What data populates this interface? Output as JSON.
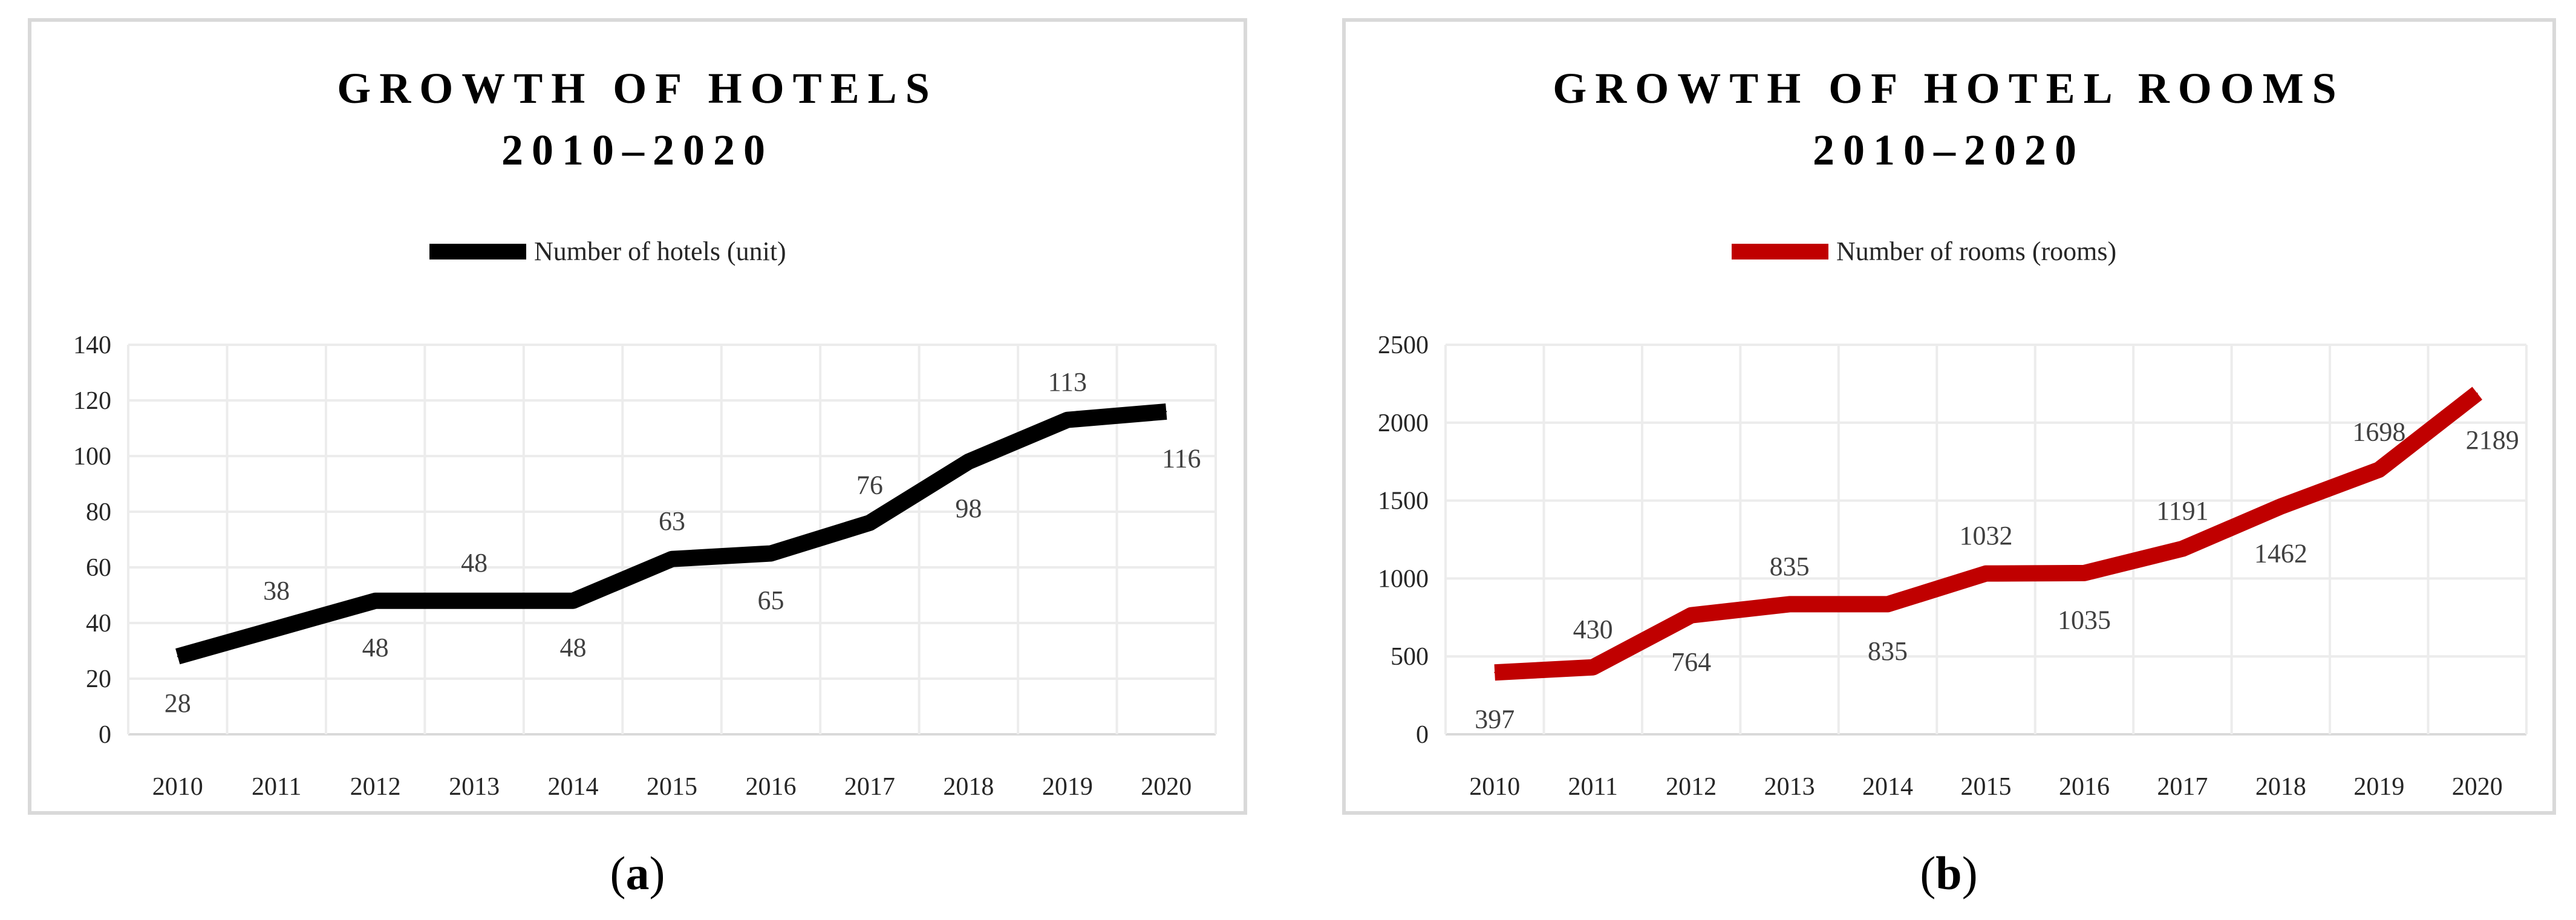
{
  "chart_data": [
    {
      "type": "line",
      "title_line1": "GROWTH OF HOTELS",
      "title_line2": "2010–2020",
      "xlabel": "",
      "ylabel": "",
      "categories": [
        "2010",
        "2011",
        "2012",
        "2013",
        "2014",
        "2015",
        "2016",
        "2017",
        "2018",
        "2019",
        "2020"
      ],
      "series": [
        {
          "name": "Number of hotels (unit)",
          "color": "#000000",
          "values": [
            28,
            38,
            48,
            48,
            48,
            63,
            65,
            76,
            98,
            113,
            116
          ]
        }
      ],
      "ylim": [
        0,
        140
      ],
      "yticks": [
        "0",
        "20",
        "40",
        "60",
        "80",
        "100",
        "120",
        "140"
      ],
      "grid": true,
      "legend": "top",
      "caption": "a"
    },
    {
      "type": "line",
      "title_line1": "GROWTH OF HOTEL ROOMS",
      "title_line2": "2010–2020",
      "xlabel": "",
      "ylabel": "",
      "categories": [
        "2010",
        "2011",
        "2012",
        "2013",
        "2014",
        "2015",
        "2016",
        "2017",
        "2018",
        "2019",
        "2020"
      ],
      "series": [
        {
          "name": "Number of rooms (rooms)",
          "color": "#C00000",
          "values": [
            397,
            430,
            764,
            835,
            835,
            1032,
            1035,
            1191,
            1462,
            1698,
            2189
          ]
        }
      ],
      "ylim": [
        0,
        2500
      ],
      "yticks": [
        "0",
        "500",
        "1000",
        "1500",
        "2000",
        "2500"
      ],
      "grid": true,
      "legend": "top",
      "caption": "b"
    }
  ]
}
